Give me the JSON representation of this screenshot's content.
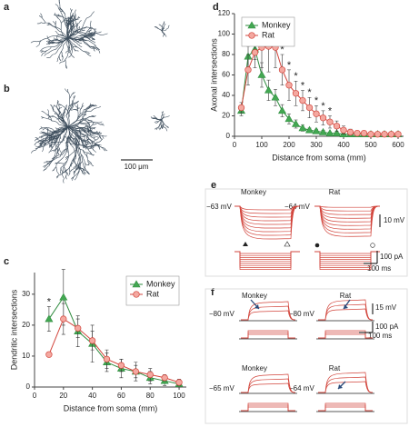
{
  "figure": {
    "panel_labels": [
      "a",
      "b",
      "c",
      "d",
      "e",
      "f"
    ],
    "scale_bar": "100 μm",
    "e": {
      "titles": [
        "Monkey",
        "Rat"
      ],
      "resting": [
        "−63 mV",
        "−64 mV"
      ],
      "scales": [
        "10 mV",
        "100 pA",
        "100 ms"
      ]
    },
    "f": {
      "titles": [
        "Monkey",
        "Rat",
        "Monkey",
        "Rat"
      ],
      "resting": [
        "−80 mV",
        "−80 mV",
        "−65 mV",
        "−64 mV"
      ],
      "scales": [
        "15 mV",
        "100 pA",
        "100 ms"
      ]
    }
  },
  "chart_data": [
    {
      "type": "line",
      "x_label": "Distance from soma (mm)",
      "y_label": "Dendritic intersections",
      "x": [
        10,
        20,
        30,
        40,
        50,
        60,
        70,
        80,
        90,
        100
      ],
      "xlim": [
        0,
        105
      ],
      "xticks": [
        0,
        20,
        40,
        60,
        80,
        100
      ],
      "ylim": [
        0,
        37
      ],
      "yticks": [
        0,
        10,
        20,
        30
      ],
      "legend": "upper right",
      "significance_label": "*",
      "significant_x": [
        10
      ],
      "series": [
        {
          "name": "Monkey",
          "color": "#2e8b3e",
          "fill": "#43a852",
          "marker": "triangle",
          "values": [
            22,
            29,
            18,
            14,
            8,
            6,
            5,
            3,
            2,
            1
          ],
          "errors": [
            4,
            9,
            5,
            6,
            3,
            3,
            3,
            2,
            1.5,
            1
          ]
        },
        {
          "name": "Rat",
          "color": "#d2453c",
          "fill": "#f4a8a0",
          "marker": "circle",
          "values": [
            10.5,
            22,
            19,
            15,
            9,
            7,
            5,
            4,
            3,
            1.5
          ],
          "errors": [
            0.5,
            5,
            3,
            3,
            3,
            2,
            2,
            2,
            1,
            1
          ]
        }
      ]
    },
    {
      "type": "line",
      "x_label": "Distance from soma (mm)",
      "y_label": "Axonal intersections",
      "x": [
        25,
        50,
        75,
        100,
        125,
        150,
        175,
        200,
        225,
        250,
        275,
        300,
        325,
        350,
        375,
        400,
        425,
        450,
        475,
        500,
        525,
        550,
        575,
        600
      ],
      "xlim": [
        0,
        620
      ],
      "xticks": [
        0,
        100,
        200,
        300,
        400,
        500,
        600
      ],
      "ylim": [
        0,
        120
      ],
      "yticks": [
        0,
        20,
        40,
        60,
        80,
        100,
        120
      ],
      "legend": "upper left",
      "significance_label": "*",
      "significant_x": [
        175,
        200,
        225,
        250,
        275,
        300,
        325,
        350
      ],
      "series": [
        {
          "name": "Monkey",
          "color": "#2e8b3e",
          "fill": "#43a852",
          "marker": "triangle",
          "values": [
            25,
            78,
            85,
            60,
            45,
            38,
            25,
            17,
            12,
            8,
            6,
            5,
            4,
            3,
            3,
            2,
            2,
            2,
            2,
            2,
            2,
            2,
            2,
            2
          ],
          "errors": [
            5,
            10,
            10,
            12,
            10,
            8,
            6,
            5,
            4,
            3,
            2,
            2,
            2,
            1,
            1,
            1,
            1,
            1,
            1,
            1,
            1,
            1,
            1,
            1
          ]
        },
        {
          "name": "Rat",
          "color": "#d2453c",
          "fill": "#f4a8a0",
          "marker": "circle",
          "values": [
            28,
            65,
            82,
            87,
            88,
            87,
            65,
            50,
            42,
            35,
            28,
            22,
            18,
            14,
            10,
            6,
            4,
            3,
            3,
            2,
            2,
            2,
            2,
            2
          ],
          "errors": [
            5,
            15,
            15,
            20,
            25,
            20,
            15,
            15,
            12,
            10,
            10,
            8,
            7,
            6,
            5,
            4,
            3,
            2,
            2,
            1,
            1,
            1,
            1,
            1
          ]
        }
      ]
    }
  ]
}
